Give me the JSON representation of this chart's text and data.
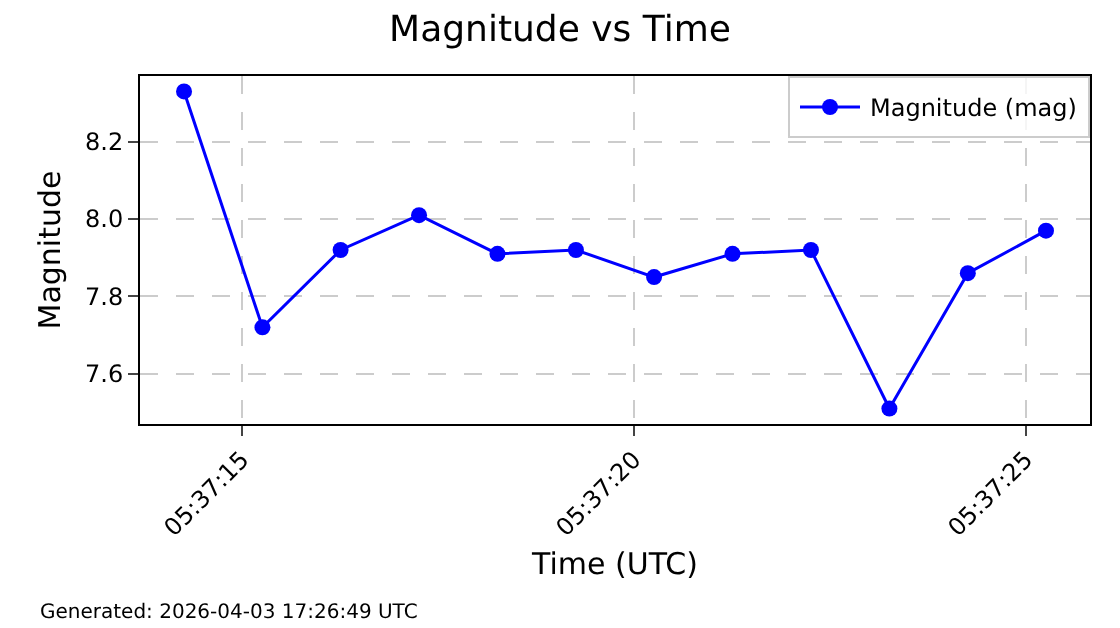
{
  "chart_data": {
    "type": "line",
    "title": "Magnitude vs Time",
    "xlabel": "Time (UTC)",
    "ylabel": "Magnitude",
    "x": [
      5.620628,
      5.620906,
      5.621183,
      5.621461,
      5.621739,
      5.622017,
      5.622294,
      5.622572,
      5.62285,
      5.623128,
      5.623406,
      5.623683
    ],
    "series": [
      {
        "name": "Magnitude (mag)",
        "color": "#0000ff",
        "values": [
          8.33,
          7.72,
          7.92,
          8.01,
          7.91,
          7.92,
          7.85,
          7.91,
          7.92,
          7.51,
          7.86,
          7.97
        ]
      }
    ],
    "xlim": [
      5.620472,
      5.623839
    ],
    "xticks": [
      {
        "value": 5.620833,
        "label": "05:37:15"
      },
      {
        "value": 5.622222,
        "label": "05:37:20"
      },
      {
        "value": 5.623611,
        "label": "05:37:25"
      }
    ],
    "ylim": [
      7.47,
      8.37
    ],
    "yticks": [
      7.6,
      7.8,
      {
        "value": 8,
        "label": "8.0"
      },
      8.2
    ],
    "grid": true,
    "legend": "top right",
    "marker": "circle",
    "line_style": "solid",
    "annotations": [
      "Generated: 2026-04-03 17:26:49 UTC"
    ]
  }
}
